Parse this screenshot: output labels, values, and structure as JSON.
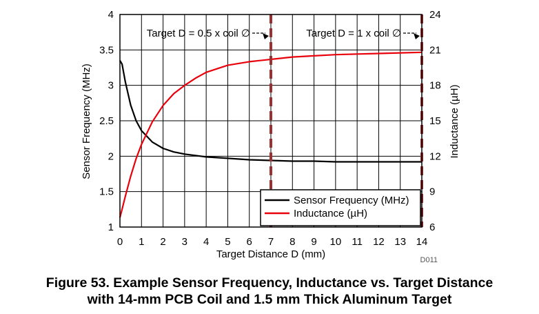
{
  "chart_data": {
    "type": "line",
    "xlabel": "Target Distance D (mm)",
    "ylabel_left": "Sensor Frequency (MHz)",
    "ylabel_right": "Inductance (µH)",
    "xlim": [
      0,
      14
    ],
    "ylim_left": [
      1,
      4
    ],
    "ylim_right": [
      6,
      24
    ],
    "x_ticks": [
      "0",
      "1",
      "2",
      "3",
      "4",
      "5",
      "6",
      "7",
      "8",
      "9",
      "10",
      "11",
      "12",
      "13",
      "14"
    ],
    "y_left_ticks": [
      "1",
      "1.5",
      "2",
      "2.5",
      "3",
      "3.5",
      "4"
    ],
    "y_right_ticks": [
      "6",
      "9",
      "12",
      "15",
      "18",
      "21",
      "24"
    ],
    "grid": true,
    "legend_position": "bottom-right",
    "annotations": [
      {
        "text": "Target D = 0.5 x coil ∅",
        "x": 7
      },
      {
        "text": "Target D = 1 x coil ∅",
        "x": 14
      }
    ],
    "figure_code": "D011",
    "series": [
      {
        "name": "Sensor Frequency (MHz)",
        "axis": "left",
        "color": "#000000",
        "x": [
          0,
          0.1,
          0.25,
          0.5,
          0.75,
          1,
          1.5,
          2,
          2.5,
          3,
          3.5,
          4,
          5,
          6,
          7,
          8,
          9,
          10,
          11,
          12,
          13,
          14
        ],
        "y": [
          3.35,
          3.3,
          3.05,
          2.72,
          2.5,
          2.36,
          2.2,
          2.11,
          2.06,
          2.03,
          2.01,
          1.99,
          1.97,
          1.95,
          1.94,
          1.93,
          1.93,
          1.92,
          1.92,
          1.92,
          1.92,
          1.92
        ]
      },
      {
        "name": "Inductance (µH)",
        "axis": "right",
        "color": "#e8000b",
        "x": [
          0,
          0.1,
          0.25,
          0.5,
          0.75,
          1,
          1.5,
          2,
          2.5,
          3,
          3.5,
          4,
          5,
          6,
          7,
          8,
          9,
          10,
          11,
          12,
          13,
          14
        ],
        "y": [
          6.8,
          7.5,
          8.6,
          10.3,
          11.8,
          13.0,
          14.9,
          16.3,
          17.3,
          18.0,
          18.6,
          19.1,
          19.7,
          20.0,
          20.2,
          20.4,
          20.5,
          20.6,
          20.65,
          20.7,
          20.75,
          20.8
        ]
      }
    ]
  },
  "caption": {
    "line1": "Figure 53.  Example Sensor Frequency, Inductance vs. Target Distance",
    "line2": "with 14-mm PCB Coil and 1.5 mm Thick Aluminum Target"
  }
}
